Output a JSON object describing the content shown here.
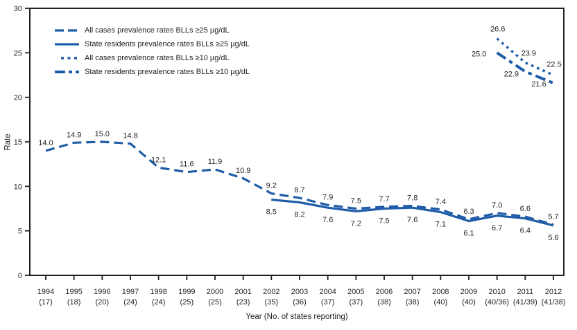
{
  "figure": {
    "background": "#ffffff"
  },
  "chart_data": {
    "type": "line",
    "title": "",
    "xlabel": "Year (No. of states reporting)",
    "ylabel": "Rate",
    "ylim": [
      0,
      30
    ],
    "yticks": [
      0,
      5,
      10,
      15,
      20,
      25,
      30
    ],
    "grid": false,
    "legend_position": "top-left-inside",
    "line_color": "#1f5ca8",
    "text_color": "#231f20",
    "years": [
      "1994",
      "1995",
      "1996",
      "1997",
      "1998",
      "1999",
      "2000",
      "2001",
      "2002",
      "2003",
      "2004",
      "2005",
      "2006",
      "2007",
      "2008",
      "2009",
      "2010",
      "2011",
      "2012"
    ],
    "states_reporting": [
      "(17)",
      "(18)",
      "(20)",
      "(24)",
      "(24)",
      "(25)",
      "(25)",
      "(23)",
      "(35)",
      "(36)",
      "(37)",
      "(37)",
      "(38)",
      "(38)",
      "(40)",
      "(40)",
      "(40/36)",
      "(41/39)",
      "(41/38)"
    ],
    "series": [
      {
        "name": "All cases prevalence rates BLLs ≥25 µg/dL",
        "style": "dashed",
        "start_index": 0,
        "values": [
          14.0,
          14.9,
          15.0,
          14.8,
          12.1,
          11.6,
          11.9,
          10.9,
          9.2,
          8.7,
          7.9,
          7.5,
          7.7,
          7.8,
          7.4,
          6.3,
          7.0,
          6.6,
          5.7
        ]
      },
      {
        "name": "State residents prevalence rates BLLs ≥25 µg/dL",
        "style": "solid",
        "start_index": 8,
        "values": [
          8.5,
          8.2,
          7.6,
          7.2,
          7.5,
          7.6,
          7.1,
          6.1,
          6.7,
          6.4,
          5.6
        ]
      },
      {
        "name": "All cases prevalence rates BLLs ≥10 µg/dL",
        "style": "dotted",
        "start_index": 16,
        "values": [
          26.6,
          23.9,
          22.5
        ]
      },
      {
        "name": "State residents prevalence rates BLLs ≥10 µg/dL",
        "style": "dashdot",
        "start_index": 16,
        "values": [
          25.0,
          22.9,
          21.6
        ]
      }
    ]
  }
}
